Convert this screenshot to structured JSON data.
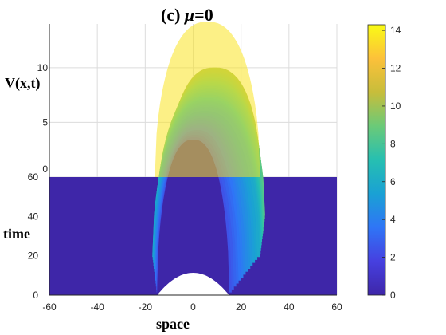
{
  "chart_data": {
    "type": "surface",
    "title_prefix": "(c)",
    "title_symbol": "μ",
    "title_suffix": "=0",
    "xlabel": "space",
    "ylabel": "time",
    "zlabel": "V(x,t)",
    "xlim": [
      -60,
      60
    ],
    "ylim": [
      0,
      60
    ],
    "zlim": [
      0,
      14
    ],
    "x_ticks": [
      "-60",
      "-40",
      "-20",
      "0",
      "20",
      "40",
      "60"
    ],
    "y_ticks": [
      "0",
      "20",
      "40",
      "60"
    ],
    "z_ticks": [
      "0",
      "5",
      "10"
    ],
    "colorbar_ticks": [
      "0",
      "2",
      "4",
      "6",
      "8",
      "10",
      "12",
      "14"
    ],
    "colorbar_range": [
      0,
      14.3
    ],
    "colormap": [
      "#3e26a8",
      "#4640e0",
      "#2f75f6",
      "#1aa1d4",
      "#26bfb1",
      "#6bca78",
      "#c7bd3b",
      "#fcc13a",
      "#f9fb15"
    ],
    "grid": true,
    "surface_description": {
      "background_level": 0,
      "peak_value": 14.2,
      "peak_location": {
        "x": 0,
        "t": 0
      },
      "edge_at_t60": {
        "x_left": -10,
        "x_right": 28
      },
      "series": [
        {
          "t": 0,
          "x_extent": [
            -15,
            15
          ],
          "peak": 14.2
        },
        {
          "t": 20,
          "x_extent": [
            -17,
            28
          ],
          "peak": 13.5
        },
        {
          "t": 40,
          "x_extent": [
            -15,
            30
          ],
          "peak": 12.0
        },
        {
          "t": 60,
          "x_extent": [
            -10,
            28
          ],
          "peak": 10.0
        }
      ]
    }
  }
}
